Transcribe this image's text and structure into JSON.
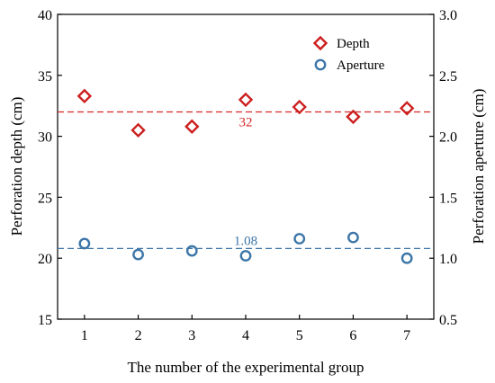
{
  "chart_data": {
    "type": "scatter",
    "xlabel": "The number of the experimental group",
    "ylabel_left": "Perforation depth (cm)",
    "ylabel_right": "Perforation aperture (cm)",
    "x_ticks": [
      "1",
      "2",
      "3",
      "4",
      "5",
      "6",
      "7"
    ],
    "xlim": [
      0.5,
      7.5
    ],
    "ylim_left": [
      15,
      40
    ],
    "ylim_right": [
      0.5,
      3.0
    ],
    "y_ticks_left": [
      "15",
      "20",
      "25",
      "30",
      "35",
      "40"
    ],
    "y_ticks_right": [
      "0.5",
      "1.0",
      "1.5",
      "2.0",
      "2.5",
      "3.0"
    ],
    "legend_position": "top-right",
    "series": [
      {
        "name": "Depth",
        "axis": "left",
        "marker": "diamond",
        "color": "#cc1f1f",
        "x": [
          1,
          2,
          3,
          4,
          5,
          6,
          7
        ],
        "y": [
          33.3,
          30.5,
          30.8,
          33.0,
          32.4,
          31.6,
          32.3
        ]
      },
      {
        "name": "Aperture",
        "axis": "right",
        "marker": "circle",
        "color": "#3c76a8",
        "x": [
          1,
          2,
          3,
          4,
          5,
          6,
          7
        ],
        "y": [
          1.12,
          1.03,
          1.06,
          1.02,
          1.16,
          1.17,
          1.0
        ]
      }
    ],
    "reference_lines": [
      {
        "axis": "left",
        "value": 32,
        "label": "32",
        "color": "#d62728",
        "label_x": 4
      },
      {
        "axis": "right",
        "value": 1.08,
        "label": "1.08",
        "color": "#3c76a8",
        "label_x": 4
      }
    ]
  }
}
